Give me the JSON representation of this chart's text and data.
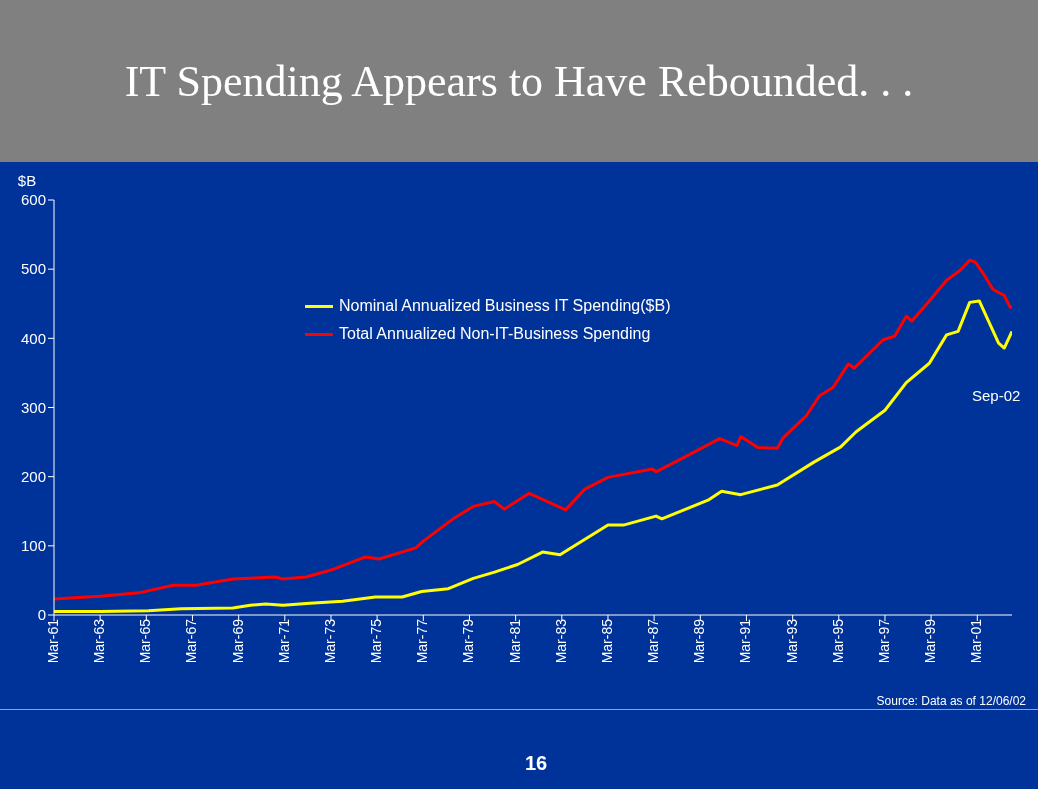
{
  "chart_data": {
    "type": "line",
    "title": "IT Spending Appears to Have Rebounded. . .",
    "ylabel": "$B",
    "annotations": [
      "Sep-02",
      "Source: Data as of 12/06/02",
      "16"
    ],
    "xlim": [
      "1961-03",
      "2002-09"
    ],
    "xticks": [
      {
        "value": "1961-03",
        "label": "Mar-61"
      },
      {
        "value": "1963-03",
        "label": "Mar-63"
      },
      {
        "value": "1965-03",
        "label": "Mar-65"
      },
      {
        "value": "1967-03",
        "label": "Mar-67"
      },
      {
        "value": "1969-03",
        "label": "Mar-69"
      },
      {
        "value": "1971-03",
        "label": "Mar-71"
      },
      {
        "value": "1973-03",
        "label": "Mar-73"
      },
      {
        "value": "1975-03",
        "label": "Mar-75"
      },
      {
        "value": "1977-03",
        "label": "Mar-77"
      },
      {
        "value": "1979-03",
        "label": "Mar-79"
      },
      {
        "value": "1981-03",
        "label": "Mar-81"
      },
      {
        "value": "1983-03",
        "label": "Mar-83"
      },
      {
        "value": "1985-03",
        "label": "Mar-85"
      },
      {
        "value": "1987-03",
        "label": "Mar-87"
      },
      {
        "value": "1989-03",
        "label": "Mar-89"
      },
      {
        "value": "1991-03",
        "label": "Mar-91"
      },
      {
        "value": "1993-03",
        "label": "Mar-93"
      },
      {
        "value": "1995-03",
        "label": "Mar-95"
      },
      {
        "value": "1997-03",
        "label": "Mar-97"
      },
      {
        "value": "1999-03",
        "label": "Mar-99"
      },
      {
        "value": "2001-03",
        "label": "Mar-01"
      }
    ],
    "ylim": [
      0,
      600
    ],
    "yticks": [
      0,
      100,
      200,
      300,
      400,
      500,
      600
    ],
    "grid": false,
    "legend": "top",
    "marker": "none",
    "line_style": "solid",
    "series": [
      {
        "name": "Nominal Annualized Business IT Spending($B)",
        "color": "#ffff00",
        "x": [
          "1961-03",
          "1963-03",
          "1965-04",
          "1966-09",
          "1968-12",
          "1969-09",
          "1970-05",
          "1971-02",
          "1972-04",
          "1973-09",
          "1975-02",
          "1976-04",
          "1977-02",
          "1978-04",
          "1979-05",
          "1980-04",
          "1981-04",
          "1982-05",
          "1983-02",
          "1985-03",
          "1985-11",
          "1987-04",
          "1987-07",
          "1989-07",
          "1990-02",
          "1990-12",
          "1992-07",
          "1994-02",
          "1995-04",
          "1995-12",
          "1997-03",
          "1998-02",
          "1999-02",
          "1999-11",
          "2000-05",
          "2000-11",
          "2001-04",
          "2002-02",
          "2002-05",
          "2002-09"
        ],
        "values": [
          5,
          5,
          6,
          9,
          10,
          14,
          16,
          14,
          17,
          20,
          26,
          26,
          34,
          38,
          53,
          62,
          73,
          91,
          87,
          130,
          130,
          143,
          139,
          166,
          179,
          174,
          188,
          221,
          243,
          265,
          296,
          336,
          364,
          405,
          410,
          452,
          454,
          393,
          386,
          410
        ]
      },
      {
        "name": "Total Annualized Non-IT-Business Spending",
        "color": "#ff0000",
        "x": [
          "1961-03",
          "1963-03",
          "1964-11",
          "1966-05",
          "1967-05",
          "1968-12",
          "1970-10",
          "1971-02",
          "1972-02",
          "1973-03",
          "1974-09",
          "1975-04",
          "1976-11",
          "1977-04",
          "1978-07",
          "1979-05",
          "1980-04",
          "1980-09",
          "1981-10",
          "1983-05",
          "1984-03",
          "1985-03",
          "1987-02",
          "1987-04",
          "1988-10",
          "1990-01",
          "1990-10",
          "1990-12",
          "1991-09",
          "1992-07",
          "1992-10",
          "1993-10",
          "1994-05",
          "1994-12",
          "1995-08",
          "1995-11",
          "1997-02",
          "1997-08",
          "1998-02",
          "1998-05",
          "1999-02",
          "1999-11",
          "2000-06",
          "2000-11",
          "2001-02",
          "2001-06",
          "2001-11",
          "2002-05",
          "2002-08",
          "2002-09"
        ],
        "values": [
          23,
          27,
          32,
          43,
          43,
          52,
          55,
          52,
          55,
          65,
          84,
          81,
          97,
          109,
          140,
          157,
          164,
          153,
          176,
          152,
          182,
          199,
          211,
          207,
          233,
          255,
          245,
          258,
          242,
          241,
          256,
          288,
          317,
          329,
          363,
          357,
          398,
          403,
          432,
          425,
          454,
          484,
          498,
          513,
          510,
          494,
          471,
          462,
          445,
          445
        ]
      }
    ]
  }
}
